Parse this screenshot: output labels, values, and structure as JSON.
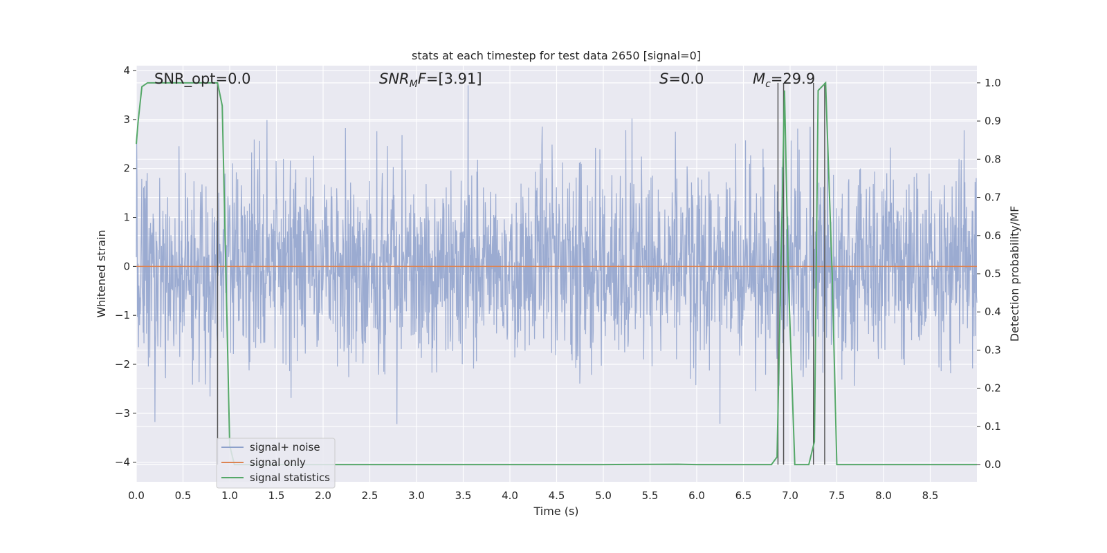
{
  "chart_data": {
    "type": "line",
    "title": "stats at each timestep for test data 2650 [signal=0]",
    "xlabel": "Time (s)",
    "ylabel": "Whitened strain",
    "y2label": "Detection probability/MF",
    "xlim": [
      0.0,
      9.0
    ],
    "ylim": [
      -4.4,
      4.1
    ],
    "y2lim": [
      -0.045,
      1.045
    ],
    "xticks": [
      "0.0",
      "0.5",
      "1.0",
      "1.5",
      "2.0",
      "2.5",
      "3.0",
      "3.5",
      "4.0",
      "4.5",
      "5.0",
      "5.5",
      "6.0",
      "6.5",
      "7.0",
      "7.5",
      "8.0",
      "8.5"
    ],
    "yticks": [
      "4",
      "3",
      "2",
      "1",
      "0",
      "−1",
      "−2",
      "−3",
      "−4"
    ],
    "y2ticks": [
      "1.0",
      "0.9",
      "0.8",
      "0.7",
      "0.6",
      "0.5",
      "0.4",
      "0.3",
      "0.2",
      "0.1",
      "0.0"
    ],
    "grid": true,
    "legend_position": "lower-left",
    "annotations": {
      "snr_opt": "SNR_opt=0.0",
      "snr_mf": "=[3.91]",
      "snr_mf_name": "SNR",
      "snr_mf_sub": "M",
      "snr_mf_tail": "F",
      "s_name": "S",
      "s_value": "=0.0",
      "mc_name": "M",
      "mc_sub": "c",
      "mc_value": "=29.9"
    },
    "series": [
      {
        "name": "signal+ noise",
        "color": "#8da0cb",
        "description_stats": {
          "n_points": 2304,
          "std": 1.0,
          "range": [
            -3.75,
            3.7
          ]
        }
      },
      {
        "name": "signal only",
        "color": "#dd8452",
        "x": [
          0.0,
          9.0
        ],
        "y": [
          0.0,
          0.0
        ]
      },
      {
        "name": "signal statistics",
        "color": "#55a868",
        "axis": "right",
        "x": [
          0.0,
          0.02,
          0.06,
          0.12,
          0.2,
          0.4,
          0.6,
          0.8,
          0.87,
          0.92,
          0.96,
          1.0,
          1.05,
          1.5,
          2.0,
          3.0,
          4.0,
          5.0,
          5.8,
          6.0,
          6.5,
          6.8,
          6.86,
          6.9,
          6.94,
          6.98,
          7.05,
          7.2,
          7.26,
          7.3,
          7.34,
          7.38,
          7.45,
          7.5,
          7.55,
          8.0,
          9.0
        ],
        "y": [
          0.84,
          0.9,
          0.99,
          1.0,
          1.0,
          1.0,
          1.0,
          1.0,
          1.0,
          0.94,
          0.5,
          0.05,
          0.0,
          0.0,
          0.0,
          0.0,
          0.0,
          0.0,
          0.001,
          0.0,
          0.0,
          0.0,
          0.02,
          0.5,
          0.98,
          0.5,
          0.0,
          0.0,
          0.06,
          0.98,
          0.99,
          1.0,
          0.5,
          0.0,
          0.0,
          0.0,
          0.0
        ]
      }
    ],
    "vlines": [
      0.87,
      6.87,
      6.93,
      7.25,
      7.37
    ],
    "vlines_color": "#555555"
  }
}
